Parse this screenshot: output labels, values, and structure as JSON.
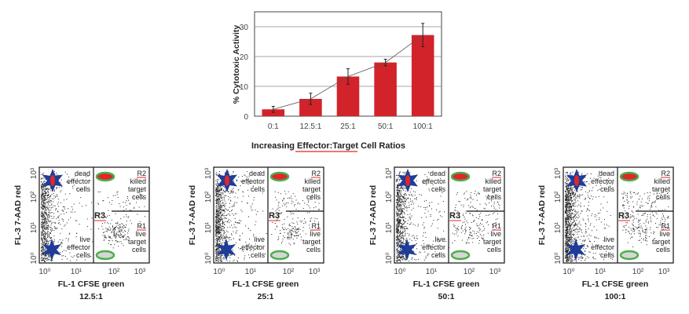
{
  "chart_data": [
    {
      "type": "bar",
      "title": "",
      "xlabel": "Increasing Effector:Target Cell Ratios",
      "ylabel": "% Cytotoxic Activity",
      "categories": [
        "0:1",
        "12.5:1",
        "25:1",
        "50:1",
        "100:1"
      ],
      "values": [
        2.3,
        5.8,
        13.3,
        18.0,
        27.2
      ],
      "error": [
        1.0,
        1.9,
        2.6,
        1.1,
        3.9
      ],
      "trend_line": true,
      "ylim": [
        0,
        35
      ],
      "yticks": [
        0,
        10,
        20,
        30
      ],
      "grid": true,
      "bar_color": "#d2232a"
    },
    {
      "type": "scatter",
      "panels": [
        {
          "ratio": "12.5:1"
        },
        {
          "ratio": "25:1"
        },
        {
          "ratio": "50:1"
        },
        {
          "ratio": "100:1"
        }
      ],
      "xlabel": "FL-1 CFSE green",
      "ylabel": "FL-3 7-AAD red",
      "xticks": [
        "10⁰",
        "10¹",
        "10²",
        "10³"
      ],
      "yticks": [
        "10⁰",
        "10¹",
        "10²",
        "10³"
      ],
      "xscale": "log",
      "yscale": "log",
      "regions": {
        "dead_effector": [
          "dead",
          "effector",
          "cells"
        ],
        "live_effector": [
          "live",
          "effector",
          "cells"
        ],
        "killed_target": [
          "R2",
          "killed",
          "target",
          "cells"
        ],
        "live_target": [
          "R1",
          "live",
          "target",
          "cells"
        ],
        "gate": "R3"
      },
      "colors": {
        "star": "#1f3c99",
        "dead": "#e0262b",
        "ring": "#4cae4c",
        "live_fill": "#d6d6d6",
        "underline": "#e0262b"
      }
    }
  ]
}
